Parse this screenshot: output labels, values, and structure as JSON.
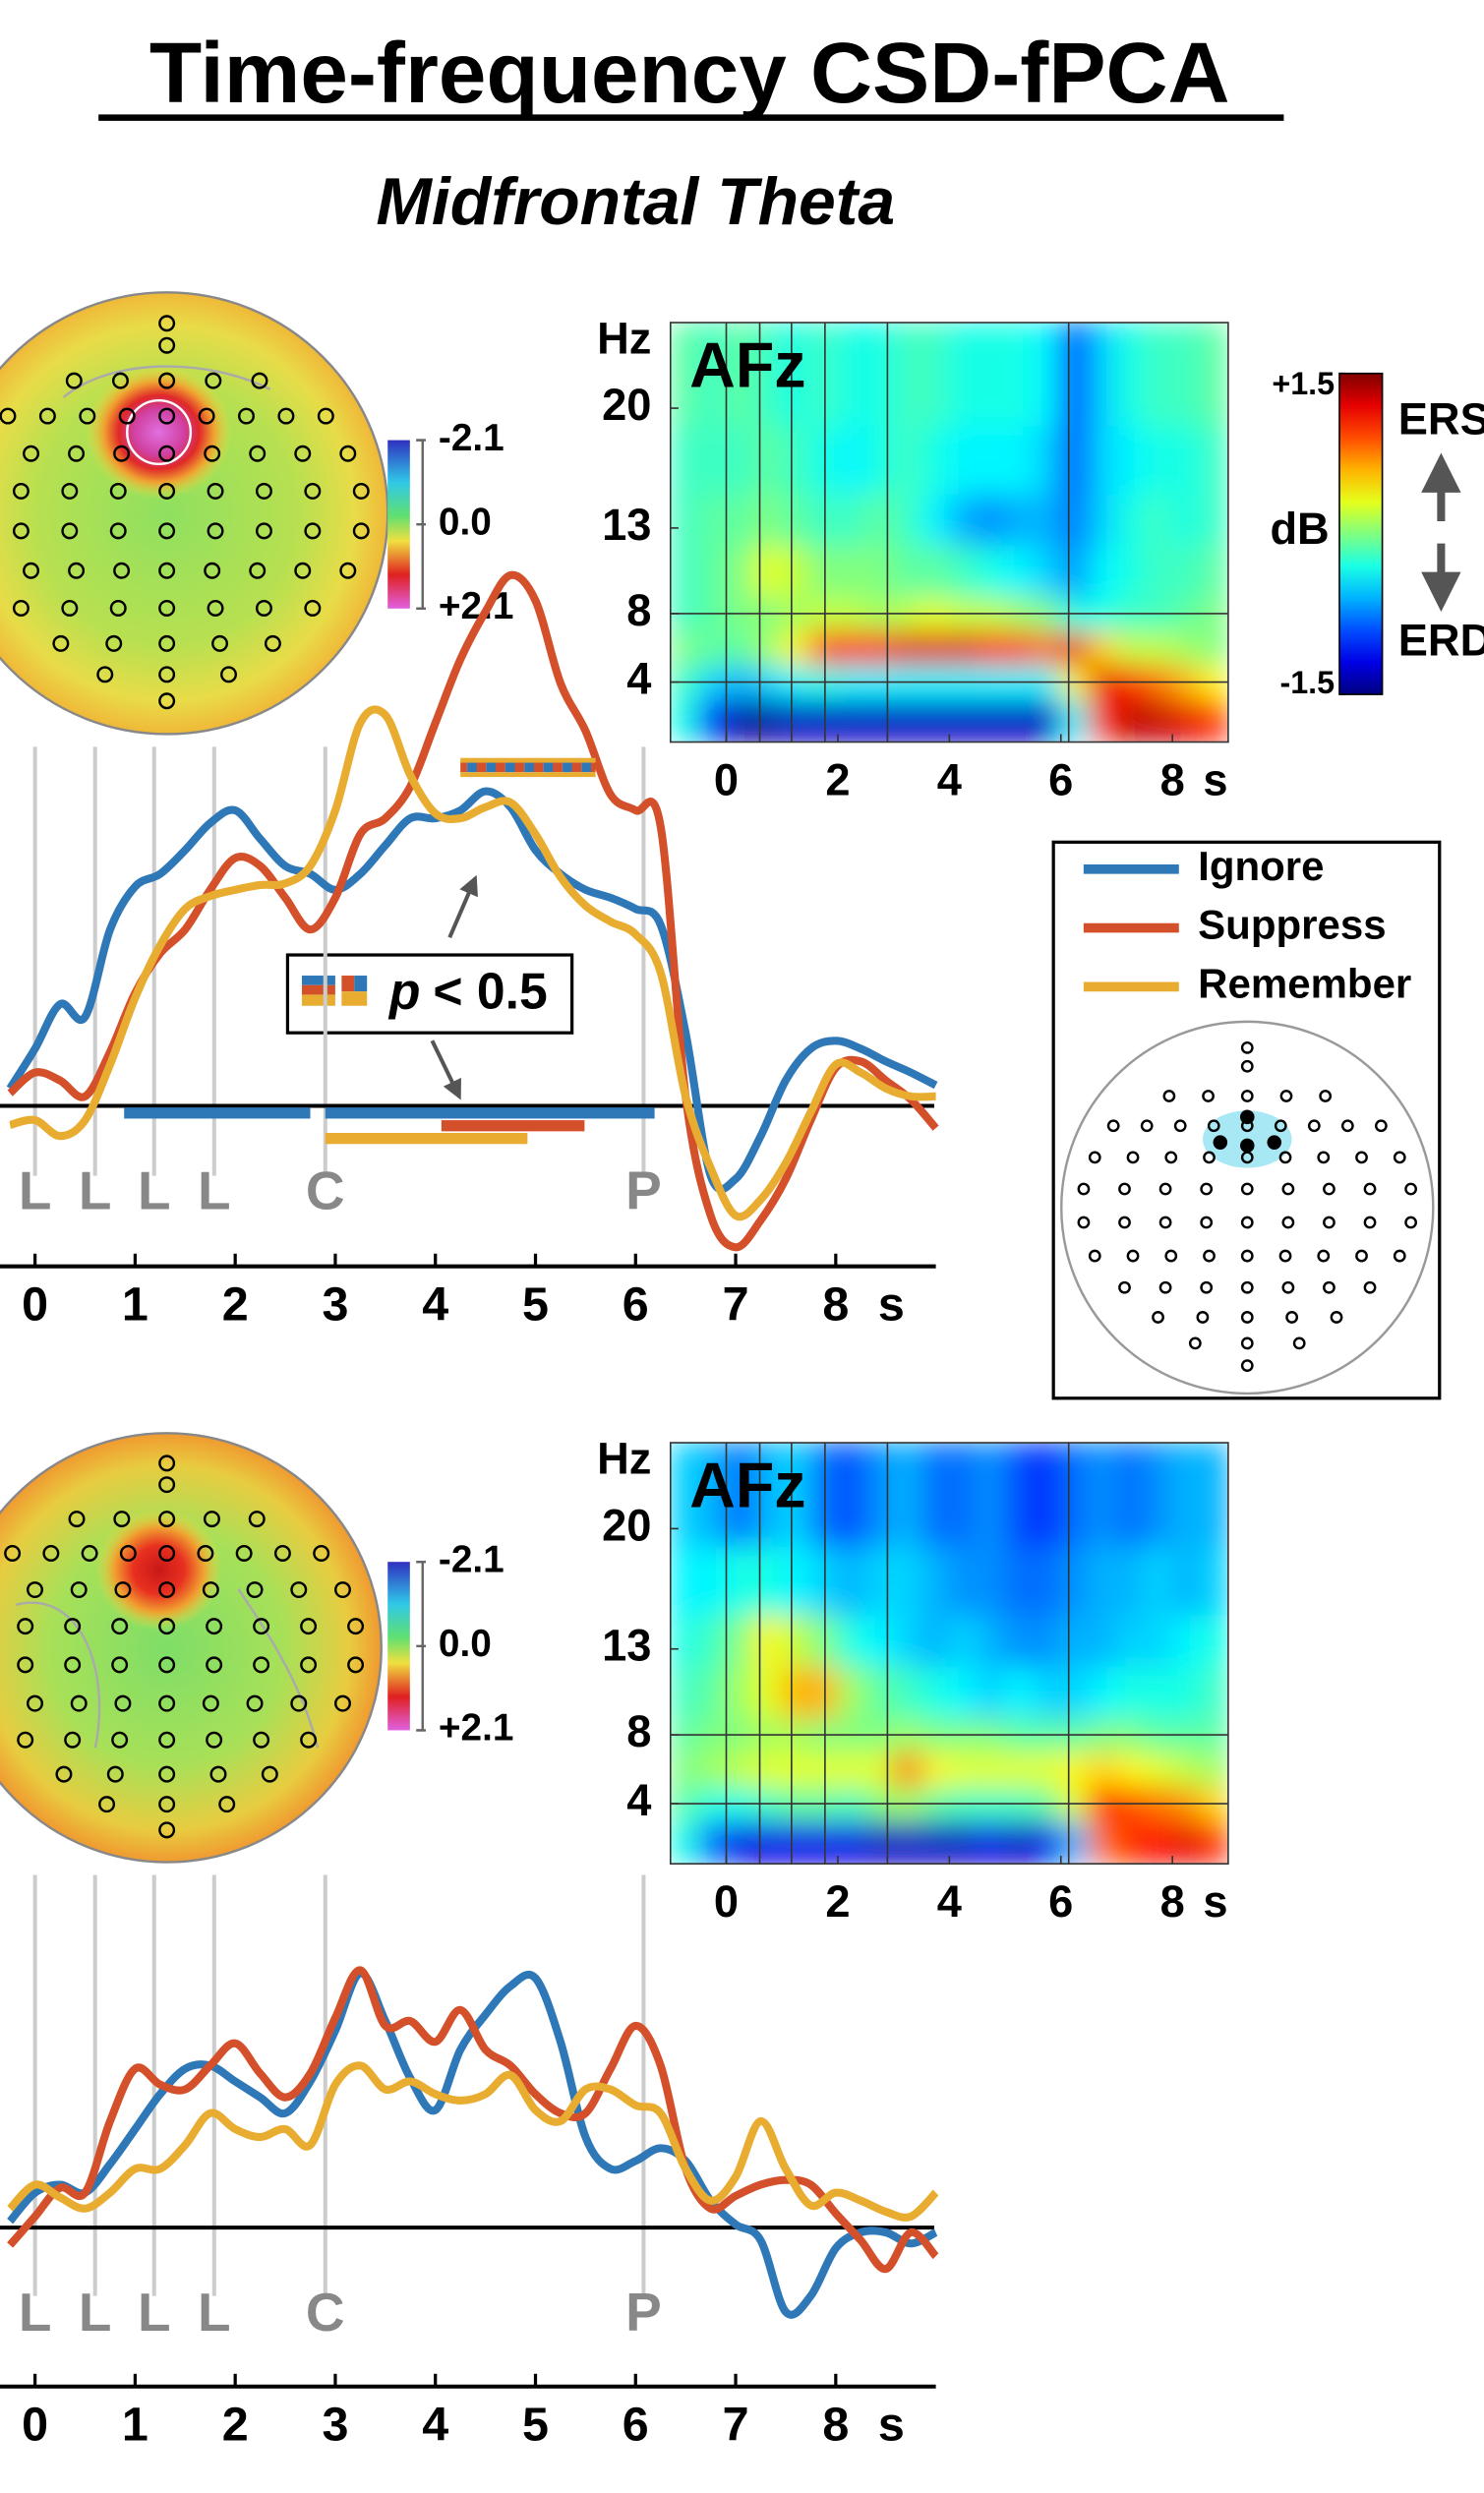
{
  "title": "Time-frequency CSD-fPCA",
  "subtitle": "Midfrontal Theta",
  "topo_colorbar": {
    "clim": [
      -2.1,
      2.1
    ],
    "ticks": [
      -2.1,
      {
        "value": 0,
        "label": "0.0"
      },
      {
        "value": 2.1,
        "label": "+2.1"
      }
    ]
  },
  "colorbar": {
    "clim": [
      -1.5,
      1.5
    ],
    "ticks": [
      {
        "value": 1.5,
        "label": "+1.5"
      },
      {
        "value": -1.5,
        "label": "-1.5"
      }
    ],
    "label": "dB",
    "top_label": "ERS",
    "bottom_label": "ERD"
  },
  "annotation": {
    "symbol": "p",
    "text": "< 0.5"
  },
  "chart_data": [
    {
      "type": "heatmap",
      "channel": "AFz",
      "y_label": "Hz",
      "x_unit": "s",
      "xlim": [
        -1,
        9
      ],
      "ylim": [
        0.5,
        25
      ],
      "xticks": [
        0,
        2,
        4,
        6,
        8
      ],
      "yticks": [
        4,
        8,
        13,
        20
      ],
      "x_edges": [
        -1,
        -0.5,
        0,
        0.5,
        1,
        1.5,
        2,
        2.5,
        3,
        3.5,
        4,
        4.5,
        5,
        5.5,
        6,
        6.5,
        7,
        7.5,
        8,
        8.5,
        9
      ],
      "y_edges": [
        0.5,
        3,
        5,
        7,
        9,
        12,
        15,
        19,
        25
      ],
      "z": [
        [
          -0.3,
          -1.0,
          -1.4,
          -1.4,
          -1.3,
          -1.3,
          -1.3,
          -1.3,
          -1.3,
          -1.3,
          -1.3,
          -1.3,
          -1.3,
          -1.3,
          -0.4,
          1.0,
          1.3,
          1.3,
          1.2,
          1.0
        ],
        [
          -0.2,
          -0.5,
          -0.6,
          -0.5,
          -0.4,
          -0.3,
          -0.4,
          -0.4,
          -0.4,
          -0.4,
          -0.4,
          -0.4,
          -0.4,
          -0.4,
          0.4,
          1.2,
          1.0,
          0.8,
          0.6,
          0.4
        ],
        [
          0.0,
          -0.1,
          -0.1,
          0.1,
          0.4,
          1.0,
          1.1,
          1.0,
          1.2,
          1.2,
          1.2,
          1.1,
          1.0,
          0.8,
          1.2,
          0.5,
          0.2,
          0.2,
          0.1,
          0.0
        ],
        [
          -0.2,
          -0.1,
          0.0,
          0.0,
          0.1,
          0.2,
          0.2,
          0.1,
          0.2,
          0.3,
          0.2,
          0.2,
          0.1,
          0.0,
          -0.3,
          -0.3,
          -0.2,
          -0.2,
          -0.1,
          0.0
        ],
        [
          -0.2,
          -0.1,
          0.0,
          0.3,
          0.2,
          0.0,
          0.0,
          0.0,
          -0.1,
          -0.1,
          -0.2,
          -0.3,
          -0.4,
          -0.5,
          -0.7,
          -0.4,
          -0.3,
          -0.2,
          -0.2,
          -0.1
        ],
        [
          -0.2,
          -0.1,
          -0.1,
          0.0,
          -0.1,
          -0.2,
          -0.2,
          -0.1,
          -0.2,
          -0.4,
          -0.6,
          -0.7,
          -0.6,
          -0.6,
          -0.8,
          -0.5,
          -0.3,
          -0.2,
          -0.3,
          -0.2
        ],
        [
          -0.2,
          -0.2,
          -0.2,
          -0.1,
          -0.2,
          -0.3,
          -0.4,
          -0.3,
          -0.2,
          -0.3,
          -0.4,
          -0.4,
          -0.4,
          -0.5,
          -0.9,
          -0.5,
          -0.4,
          -0.3,
          -0.3,
          -0.2
        ],
        [
          -0.1,
          -0.2,
          -0.1,
          -0.2,
          -0.3,
          -0.2,
          -0.3,
          -0.3,
          -0.2,
          -0.2,
          -0.3,
          -0.3,
          -0.3,
          -0.4,
          -1.0,
          -0.5,
          -0.3,
          -0.2,
          -0.2,
          -0.1
        ]
      ],
      "vlines": [
        0,
        0.6,
        1.17,
        1.77,
        2.89,
        6.14
      ],
      "hlines": [
        4,
        8
      ]
    },
    {
      "type": "line",
      "x_unit": "s",
      "xlim": [
        -0.35,
        9
      ],
      "ylim": [
        -1.04,
        3.46
      ],
      "xticks": [
        0,
        1,
        2,
        3,
        4,
        5,
        6,
        7,
        8
      ],
      "x": [
        -0.25,
        0,
        0.25,
        0.5,
        0.75,
        1,
        1.25,
        1.5,
        1.75,
        2,
        2.25,
        2.5,
        2.75,
        3,
        3.25,
        3.5,
        3.75,
        4,
        4.25,
        4.5,
        4.75,
        5,
        5.25,
        5.5,
        5.75,
        6,
        6.25,
        6.5,
        6.75,
        7,
        7.25,
        7.5,
        7.75,
        8,
        8.25,
        8.5,
        8.75,
        9
      ],
      "series": [
        {
          "name": "Ignore",
          "color": "#2f78b8",
          "values": [
            0.11,
            0.36,
            0.64,
            0.56,
            1.11,
            1.38,
            1.46,
            1.61,
            1.78,
            1.86,
            1.68,
            1.51,
            1.46,
            1.36,
            1.46,
            1.64,
            1.81,
            1.81,
            1.86,
            1.98,
            1.88,
            1.61,
            1.46,
            1.36,
            1.31,
            1.24,
            1.14,
            0.46,
            -0.44,
            -0.46,
            -0.19,
            0.16,
            0.36,
            0.41,
            0.36,
            0.28,
            0.21,
            0.13
          ],
          "significance": [
            [
              0.89,
              2.75
            ],
            [
              2.9,
              6.19
            ]
          ]
        },
        {
          "name": "Suppress",
          "color": "#d4502a",
          "values": [
            0.08,
            0.21,
            0.16,
            0.06,
            0.34,
            0.71,
            0.96,
            1.11,
            1.36,
            1.56,
            1.51,
            1.31,
            1.11,
            1.31,
            1.71,
            1.81,
            2.01,
            2.41,
            2.81,
            3.11,
            3.34,
            3.18,
            2.66,
            2.36,
            1.96,
            1.86,
            1.76,
            0.06,
            -0.69,
            -0.89,
            -0.72,
            -0.46,
            -0.09,
            0.24,
            0.28,
            0.16,
            0.04,
            -0.14
          ],
          "significance": [
            [
              4.06,
              5.49
            ]
          ]
        },
        {
          "name": "Remember",
          "color": "#e8ad30",
          "values": [
            -0.12,
            -0.09,
            -0.19,
            -0.09,
            0.26,
            0.68,
            1.01,
            1.24,
            1.32,
            1.36,
            1.39,
            1.4,
            1.51,
            1.86,
            2.41,
            2.46,
            2.08,
            1.84,
            1.81,
            1.88,
            1.91,
            1.71,
            1.44,
            1.26,
            1.16,
            1.08,
            0.84,
            0.06,
            -0.39,
            -0.69,
            -0.59,
            -0.36,
            -0.04,
            0.26,
            0.21,
            0.11,
            0.06,
            0.06
          ],
          "significance": [
            [
              2.9,
              4.92
            ]
          ]
        }
      ],
      "events": [
        {
          "label": "L",
          "x": 0
        },
        {
          "label": "L",
          "x": 0.6
        },
        {
          "label": "L",
          "x": 1.19
        },
        {
          "label": "L",
          "x": 1.79
        },
        {
          "label": "C",
          "x": 2.9
        },
        {
          "label": "P",
          "x": 6.08
        }
      ],
      "joint_significance": [
        [
          4.25,
          5.6
        ]
      ]
    },
    {
      "type": "heatmap",
      "channel": "AFz",
      "y_label": "Hz",
      "x_unit": "s",
      "xlim": [
        -1,
        9
      ],
      "ylim": [
        0.5,
        25
      ],
      "xticks": [
        0,
        2,
        4,
        6,
        8
      ],
      "yticks": [
        4,
        8,
        13,
        20
      ],
      "x_edges": [
        -1,
        -0.5,
        0,
        0.5,
        1,
        1.5,
        2,
        2.5,
        3,
        3.5,
        4,
        4.5,
        5,
        5.5,
        6,
        6.5,
        7,
        7.5,
        8,
        8.5,
        9
      ],
      "y_edges": [
        0.5,
        3,
        5,
        7,
        9,
        12,
        15,
        19,
        25
      ],
      "z": [
        [
          -0.3,
          -0.8,
          -1.2,
          -1.2,
          -1.2,
          -1.2,
          -1.2,
          -1.3,
          -1.3,
          -1.3,
          -1.3,
          -1.2,
          -1.3,
          -1.2,
          -0.6,
          0.8,
          1.0,
          1.1,
          1.2,
          1.0
        ],
        [
          -0.1,
          -0.3,
          -0.3,
          -0.2,
          -0.1,
          -0.1,
          -0.2,
          0.0,
          0.1,
          -0.1,
          -0.2,
          -0.2,
          -0.2,
          -0.1,
          0.3,
          1.1,
          0.9,
          0.8,
          0.7,
          0.5
        ],
        [
          0.0,
          0.1,
          0.2,
          0.3,
          0.3,
          0.3,
          0.3,
          0.3,
          0.8,
          0.4,
          0.3,
          0.3,
          0.3,
          0.3,
          0.4,
          0.5,
          0.4,
          0.3,
          0.2,
          0.1
        ],
        [
          -0.1,
          0.0,
          0.0,
          0.1,
          0.1,
          0.0,
          0.0,
          0.0,
          0.1,
          0.0,
          0.0,
          0.0,
          -0.1,
          -0.1,
          -0.1,
          0.0,
          0.0,
          -0.1,
          -0.1,
          -0.1
        ],
        [
          -0.2,
          -0.1,
          0.1,
          0.3,
          0.6,
          0.6,
          0.1,
          -0.1,
          -0.2,
          -0.3,
          -0.4,
          -0.5,
          -0.4,
          -0.5,
          -0.5,
          -0.4,
          -0.3,
          -0.3,
          -0.3,
          -0.2
        ],
        [
          -0.3,
          -0.2,
          0.0,
          0.4,
          0.2,
          0.0,
          -0.3,
          -0.4,
          -0.5,
          -0.6,
          -0.5,
          -0.6,
          -0.7,
          -0.7,
          -0.6,
          -0.6,
          -0.5,
          -0.5,
          -0.4,
          -0.3
        ],
        [
          -0.4,
          -0.4,
          -0.3,
          -0.3,
          -0.4,
          -0.5,
          -0.6,
          -0.5,
          -0.5,
          -0.6,
          -0.7,
          -0.7,
          -0.8,
          -0.8,
          -0.7,
          -0.6,
          -0.6,
          -0.5,
          -0.6,
          -0.5
        ],
        [
          -0.5,
          -0.6,
          -0.8,
          -0.6,
          -0.5,
          -0.8,
          -0.9,
          -0.7,
          -0.6,
          -0.8,
          -0.8,
          -0.7,
          -0.9,
          -1.0,
          -0.8,
          -0.7,
          -0.8,
          -0.7,
          -0.6,
          -0.6
        ]
      ],
      "vlines": [
        0,
        0.6,
        1.17,
        1.77,
        2.89,
        6.14
      ],
      "hlines": [
        4,
        8
      ]
    },
    {
      "type": "line",
      "x_unit": "s",
      "xlim": [
        -0.35,
        9
      ],
      "ylim": [
        -0.88,
        2.22
      ],
      "xticks": [
        0,
        1,
        2,
        3,
        4,
        5,
        6,
        7,
        8
      ],
      "x": [
        -0.25,
        0,
        0.25,
        0.5,
        0.75,
        1,
        1.25,
        1.5,
        1.75,
        2,
        2.25,
        2.5,
        2.75,
        3,
        3.25,
        3.5,
        3.75,
        4,
        4.25,
        4.5,
        4.75,
        5,
        5.25,
        5.5,
        5.75,
        6,
        6.25,
        6.5,
        6.75,
        7,
        7.25,
        7.5,
        7.75,
        8,
        8.25,
        8.5,
        8.75,
        9
      ],
      "series": [
        {
          "name": "Ignore",
          "color": "#2f78b8",
          "values": [
            0.04,
            0.22,
            0.27,
            0.22,
            0.4,
            0.62,
            0.84,
            1.0,
            1.02,
            0.92,
            0.82,
            0.72,
            0.92,
            1.24,
            1.6,
            1.3,
            0.94,
            0.74,
            1.12,
            1.34,
            1.52,
            1.57,
            1.17,
            0.57,
            0.37,
            0.42,
            0.5,
            0.42,
            0.17,
            0.02,
            -0.08,
            -0.53,
            -0.43,
            -0.13,
            -0.03,
            -0.03,
            -0.1,
            -0.03
          ]
        },
        {
          "name": "Suppress",
          "color": "#d4502a",
          "values": [
            -0.11,
            0.07,
            0.25,
            0.22,
            0.67,
            1.0,
            0.9,
            0.87,
            1.02,
            1.16,
            0.97,
            0.82,
            0.97,
            1.32,
            1.62,
            1.27,
            1.3,
            1.17,
            1.37,
            1.12,
            1.02,
            0.84,
            0.72,
            0.72,
            1.0,
            1.27,
            1.02,
            0.37,
            0.12,
            0.2,
            0.27,
            0.3,
            0.27,
            0.09,
            -0.08,
            -0.26,
            -0.03,
            -0.18
          ]
        },
        {
          "name": "Remember",
          "color": "#e8ad30",
          "values": [
            0.12,
            0.27,
            0.19,
            0.12,
            0.22,
            0.37,
            0.37,
            0.52,
            0.72,
            0.62,
            0.57,
            0.62,
            0.52,
            0.9,
            1.02,
            0.87,
            0.92,
            0.84,
            0.8,
            0.84,
            0.96,
            0.74,
            0.67,
            0.87,
            0.87,
            0.77,
            0.72,
            0.37,
            0.17,
            0.32,
            0.67,
            0.37,
            0.14,
            0.22,
            0.17,
            0.1,
            0.07,
            0.22
          ]
        }
      ],
      "events": [
        {
          "label": "L",
          "x": 0
        },
        {
          "label": "L",
          "x": 0.6
        },
        {
          "label": "L",
          "x": 1.19
        },
        {
          "label": "L",
          "x": 1.79
        },
        {
          "label": "C",
          "x": 2.9
        },
        {
          "label": "P",
          "x": 6.08
        }
      ]
    }
  ]
}
